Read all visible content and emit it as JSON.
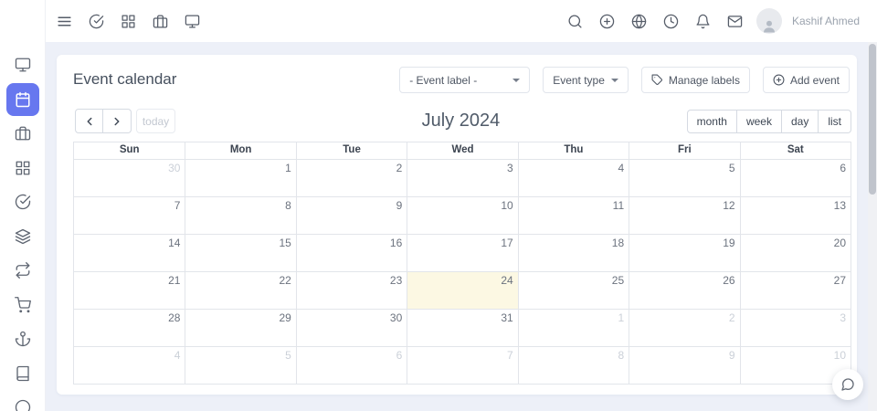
{
  "navbar": {
    "user_name": "Kashif Ahmed",
    "left_icons": [
      "menu-icon",
      "check-circle-icon",
      "grid-icon",
      "briefcase-icon",
      "monitor-icon"
    ],
    "right_icons": [
      "search-icon",
      "plus-circle-icon",
      "globe-icon",
      "clock-icon",
      "bell-icon",
      "mail-icon",
      "avatar-user-icon"
    ]
  },
  "sidebar": {
    "active_item": "calendar",
    "icons": [
      "monitor-icon",
      "calendar-icon",
      "briefcase-icon",
      "grid-icon",
      "check-circle-icon",
      "layers-icon",
      "repeat-icon",
      "shopping-cart-icon",
      "anchor-icon",
      "book-icon",
      "circle-icon"
    ]
  },
  "page": {
    "title": "Event calendar",
    "controls": {
      "event_label_select": "- Event label -",
      "event_type": "Event type",
      "manage_labels": "Manage labels",
      "add_event": "Add event"
    }
  },
  "calendar": {
    "title": "July 2024",
    "today_button": "today",
    "views": [
      "month",
      "week",
      "day",
      "list"
    ],
    "day_headers": [
      "Sun",
      "Mon",
      "Tue",
      "Wed",
      "Thu",
      "Fri",
      "Sat"
    ],
    "today_date": "24",
    "weeks": [
      [
        {
          "d": "30",
          "muted": true
        },
        {
          "d": "1"
        },
        {
          "d": "2"
        },
        {
          "d": "3"
        },
        {
          "d": "4"
        },
        {
          "d": "5"
        },
        {
          "d": "6"
        }
      ],
      [
        {
          "d": "7"
        },
        {
          "d": "8"
        },
        {
          "d": "9"
        },
        {
          "d": "10"
        },
        {
          "d": "11"
        },
        {
          "d": "12"
        },
        {
          "d": "13"
        }
      ],
      [
        {
          "d": "14"
        },
        {
          "d": "15"
        },
        {
          "d": "16"
        },
        {
          "d": "17"
        },
        {
          "d": "18"
        },
        {
          "d": "19"
        },
        {
          "d": "20"
        }
      ],
      [
        {
          "d": "21"
        },
        {
          "d": "22"
        },
        {
          "d": "23"
        },
        {
          "d": "24",
          "today": true
        },
        {
          "d": "25"
        },
        {
          "d": "26"
        },
        {
          "d": "27"
        }
      ],
      [
        {
          "d": "28"
        },
        {
          "d": "29"
        },
        {
          "d": "30"
        },
        {
          "d": "31"
        },
        {
          "d": "1",
          "muted": true
        },
        {
          "d": "2",
          "muted": true
        },
        {
          "d": "3",
          "muted": true
        }
      ],
      [
        {
          "d": "4",
          "muted": true
        },
        {
          "d": "5",
          "muted": true
        },
        {
          "d": "6",
          "muted": true
        },
        {
          "d": "7",
          "muted": true
        },
        {
          "d": "8",
          "muted": true
        },
        {
          "d": "9",
          "muted": true
        },
        {
          "d": "10",
          "muted": true
        }
      ]
    ]
  },
  "colors": {
    "primary": "#6777ef",
    "today_highlight": "#fcf8e3",
    "background": "#edf0f8",
    "grid_border": "#e2e5ea"
  }
}
